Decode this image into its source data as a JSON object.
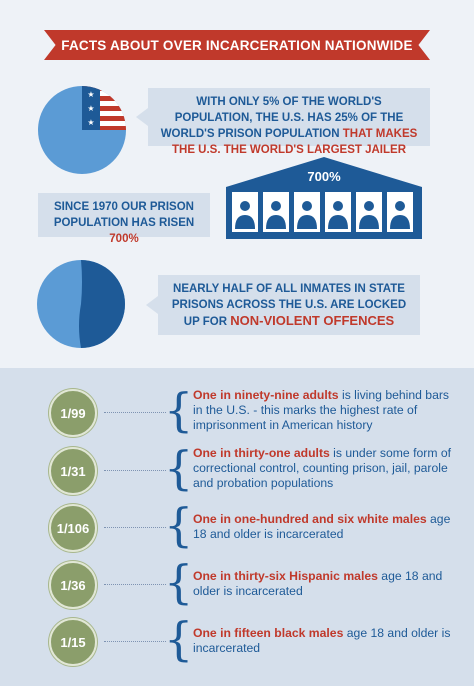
{
  "banner": {
    "title": "Facts about over incarceration nationwide"
  },
  "fact1": {
    "text_a": "With only 5% of the world's population, the U.S. has 25% of the world's prison population ",
    "highlight": "that makes the U.S. the world's largest jailer",
    "pie_highlight_fraction": 0.25
  },
  "fact2": {
    "text_a": "Since 1970 our prison population has risen ",
    "highlight": "700%",
    "building_label": "700%"
  },
  "fact3": {
    "text_a": "Nearly half of all inmates in state prisons across the U.S. are locked up for ",
    "highlight": "non-violent offences",
    "pie_dark_fraction": 0.48
  },
  "stats": [
    {
      "ratio": "1/99",
      "highlight": "One in ninety-nine adults",
      "rest": " is living behind bars in the U.S. - this marks the highest rate of imprisonment in American history"
    },
    {
      "ratio": "1/31",
      "highlight": "One in thirty-one adults",
      "rest": " is under some form of correctional control, counting prison, jail, parole and probation populations"
    },
    {
      "ratio": "1/106",
      "highlight": "One in one-hundred and six white males",
      "rest": " age 18 and older is incarcerated"
    },
    {
      "ratio": "1/36",
      "highlight": "One in thirty-six Hispanic males",
      "rest": " age 18 and older is incarcerated"
    },
    {
      "ratio": "1/15",
      "highlight": "One in fifteen black males",
      "rest": " age 18 and older is incarcerated"
    }
  ],
  "colors": {
    "red": "#c0392b",
    "blue": "#1e5a97",
    "light_blue": "#5b9bd5",
    "olive": "#8b9e6b"
  }
}
